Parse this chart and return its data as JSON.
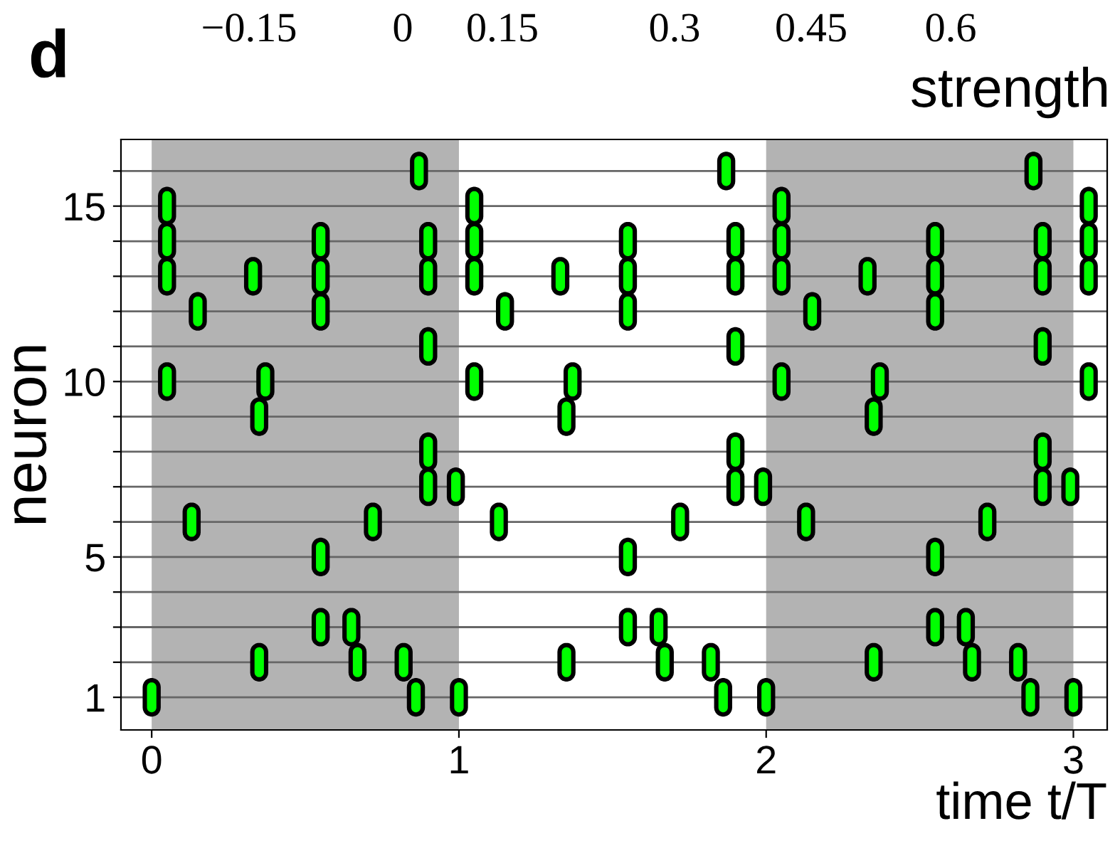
{
  "chart_data": {
    "type": "scatter",
    "xlabel": "time t/T",
    "ylabel": "neuron",
    "annotations": [
      "d",
      "−0.15",
      "0",
      "0.15",
      "0.3",
      "0.45",
      "0.6",
      "strength"
    ],
    "series": [
      {
        "color": "#00ff00",
        "x": [
          0,
          0.05,
          0.05,
          0.05,
          0.05,
          0.13,
          0.15,
          0.33,
          0.35,
          0.35,
          0.37,
          0.55,
          0.55,
          0.55,
          0.55,
          0.55,
          0.65,
          0.67,
          0.72,
          0.82,
          0.86,
          0.87,
          0.9,
          0.9,
          0.9,
          0.9,
          0.9,
          0.99,
          1,
          1.05,
          1.05,
          1.05,
          1.05,
          1.13,
          1.15,
          1.33,
          1.35,
          1.35,
          1.37,
          1.55,
          1.55,
          1.55,
          1.55,
          1.55,
          1.65,
          1.67,
          1.72,
          1.82,
          1.86,
          1.87,
          1.9,
          1.9,
          1.9,
          1.9,
          1.9,
          1.99,
          2,
          2.05,
          2.05,
          2.05,
          2.05,
          2.13,
          2.15,
          2.33,
          2.35,
          2.35,
          2.37,
          2.55,
          2.55,
          2.55,
          2.55,
          2.55,
          2.65,
          2.67,
          2.72,
          2.82,
          2.86,
          2.87,
          2.9,
          2.9,
          2.9,
          2.9,
          2.9,
          2.99,
          3,
          3.05,
          3.05,
          3.05,
          3.05
        ],
        "values": [
          1,
          15,
          14,
          13,
          10,
          6,
          12,
          13,
          9,
          2,
          10,
          14,
          13,
          12,
          5,
          3,
          3,
          2,
          6,
          2,
          1,
          16,
          14,
          13,
          11,
          8,
          7,
          7,
          1,
          15,
          14,
          13,
          10,
          6,
          12,
          13,
          9,
          2,
          10,
          14,
          13,
          12,
          5,
          3,
          3,
          2,
          6,
          2,
          1,
          16,
          14,
          13,
          11,
          8,
          7,
          7,
          1,
          15,
          14,
          13,
          10,
          6,
          12,
          13,
          9,
          2,
          10,
          14,
          13,
          12,
          5,
          3,
          3,
          2,
          6,
          2,
          1,
          16,
          14,
          13,
          11,
          8,
          7,
          7,
          1,
          15,
          14,
          13,
          10
        ]
      }
    ],
    "xlim": [
      -0.1,
      3.11
    ],
    "ylim": [
      0.07,
      16.9
    ],
    "xticks": [
      0,
      1,
      2,
      3
    ],
    "yticks": [
      1,
      {
        "value": 2,
        "label": null
      },
      {
        "value": 3,
        "label": null
      },
      {
        "value": 4,
        "label": null
      },
      5,
      {
        "value": 6,
        "label": null
      },
      {
        "value": 7,
        "label": null
      },
      {
        "value": 8,
        "label": null
      },
      {
        "value": 9,
        "label": null
      },
      10,
      {
        "value": 11,
        "label": null
      },
      {
        "value": 12,
        "label": null
      },
      {
        "value": 13,
        "label": null
      },
      {
        "value": 14,
        "label": null
      },
      15,
      {
        "value": 16,
        "label": null
      }
    ],
    "bands": [
      {
        "axis": "x",
        "from": 0,
        "to": 1,
        "color": "#b3b3b3"
      },
      {
        "axis": "x",
        "from": 2,
        "to": 3,
        "color": "#b3b3b3"
      }
    ],
    "grid": "y"
  }
}
